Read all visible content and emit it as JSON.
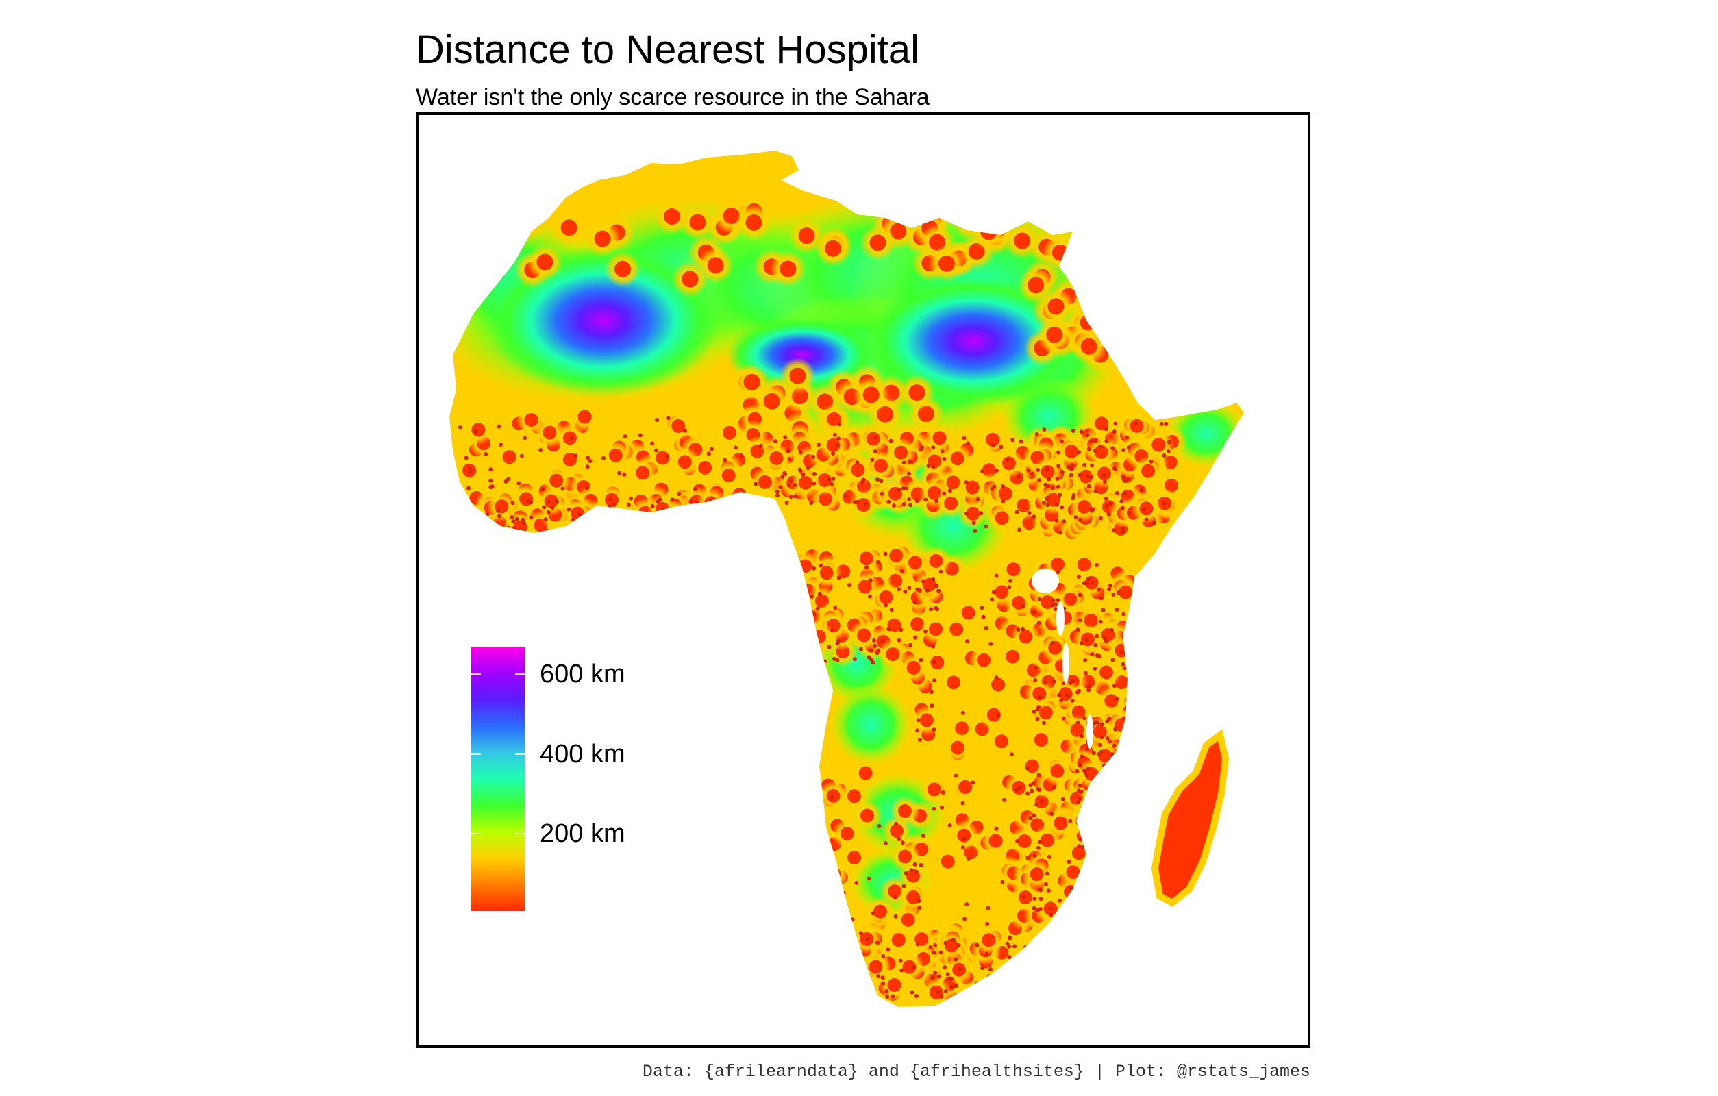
{
  "title": "Distance to Nearest Hospital",
  "subtitle": "Water isn't the only scarce resource in the Sahara",
  "caption": "Data: {afrilearndata} and {afrihealthsites} | Plot: @rstats_james",
  "legend": {
    "labels": [
      "600 km",
      "400 km",
      "200 km"
    ],
    "breaks_km": [
      600,
      400,
      200
    ],
    "range_km": [
      0,
      660
    ],
    "colors": [
      "#ff2a00",
      "#ff7d00",
      "#ffd000",
      "#b8ff00",
      "#3dff2e",
      "#1fffb0",
      "#34c6e6",
      "#2a6bff",
      "#5a1cff",
      "#a000ff",
      "#ff00e6"
    ]
  },
  "map": {
    "region": "Africa",
    "colors": {
      "near": "#ff3300",
      "mid": "#ffd000",
      "far_green": "#33ff33",
      "far_cyan": "#1fffd0",
      "far_blue": "#2a6bff",
      "max": "#c000ff",
      "hospital_dot": "#d92200"
    }
  }
}
